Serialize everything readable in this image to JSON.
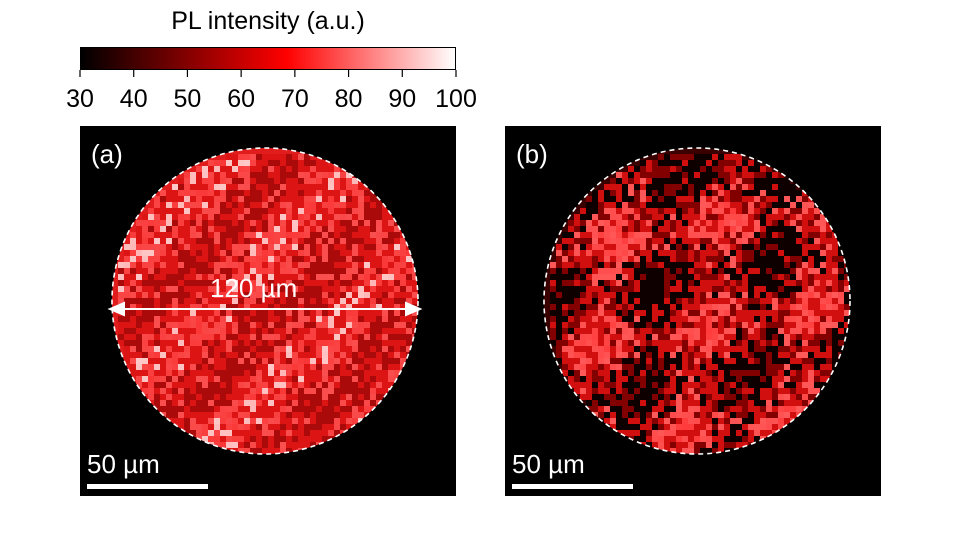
{
  "colorbar": {
    "title": "PL intensity (a.u.)",
    "tick_labels": [
      "30",
      "40",
      "50",
      "60",
      "70",
      "80",
      "90",
      "100"
    ],
    "range": [
      30,
      100
    ],
    "colors": [
      "#000000",
      "#ff0000",
      "#ffffff"
    ]
  },
  "panels": [
    {
      "label": "(a)",
      "scale_bar_label": "50 µm",
      "diameter_label": "120 µm",
      "base_color": "#e81e1e"
    },
    {
      "label": "(b)",
      "scale_bar_label": "50 µm",
      "base_color": "#c81010"
    }
  ]
}
